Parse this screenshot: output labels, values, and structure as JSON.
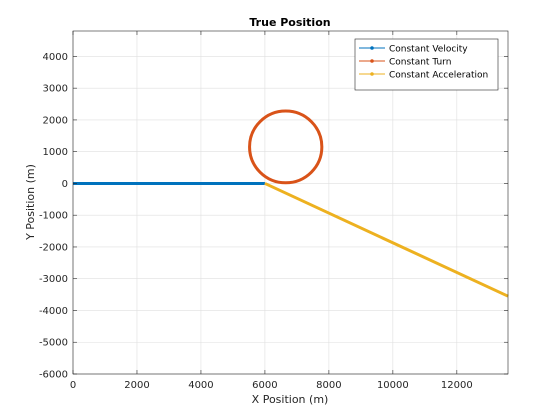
{
  "figure": {
    "background": "#ffffff"
  },
  "chart_data": {
    "type": "line",
    "title": "True Position",
    "xlabel": "X Position (m)",
    "ylabel": "Y Position (m)",
    "xlim": [
      0,
      13600
    ],
    "ylim": [
      -6000,
      4800
    ],
    "xticks": [
      0,
      2000,
      4000,
      6000,
      8000,
      10000,
      12000
    ],
    "yticks": [
      -6000,
      -5000,
      -4000,
      -3000,
      -2000,
      -1000,
      0,
      1000,
      2000,
      3000,
      4000
    ],
    "grid": true,
    "legend_location": "top-right",
    "series": [
      {
        "name": "Constant Velocity",
        "color": "#0072BD",
        "marker": "point",
        "shape": "line",
        "x": [
          0,
          6000
        ],
        "y": [
          0,
          0
        ]
      },
      {
        "name": "Constant Turn",
        "color": "#D95319",
        "marker": "point",
        "shape": "circle",
        "center": [
          6650,
          1150
        ],
        "radius": 1130
      },
      {
        "name": "Constant Acceleration",
        "color": "#EDB120",
        "marker": "point",
        "shape": "line",
        "x": [
          6000,
          13600
        ],
        "y": [
          0,
          -3550
        ]
      }
    ]
  }
}
